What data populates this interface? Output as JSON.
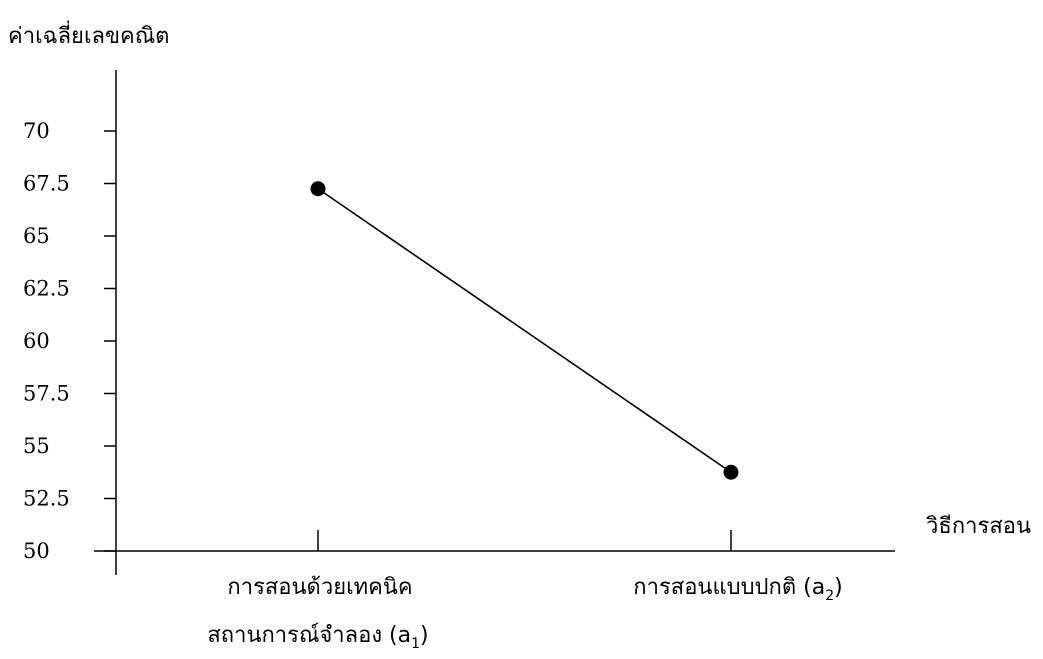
{
  "chart_data": {
    "type": "line",
    "title": "",
    "ylabel": "ค่าเฉลี่ยเลขคณิต",
    "xlabel": "วิธีการสอน",
    "ylim": [
      50,
      70
    ],
    "yticks": [
      "50",
      "52.5",
      "55",
      "57.5",
      "60",
      "62.5",
      "65",
      "67.5",
      "70"
    ],
    "categories": [
      {
        "line1": "การสอนด้วยเทคนิค",
        "line2": "สถานการณ์จำลอง (a",
        "sub": "1",
        "close": ")"
      },
      {
        "line1": "การสอนแบบปกติ (a",
        "sub": "2",
        "close": ")"
      }
    ],
    "series": [
      {
        "values": [
          67.25,
          53.75
        ]
      }
    ],
    "grid": false,
    "legend": "none",
    "line_color": "#000000",
    "marker_color": "#000000"
  }
}
